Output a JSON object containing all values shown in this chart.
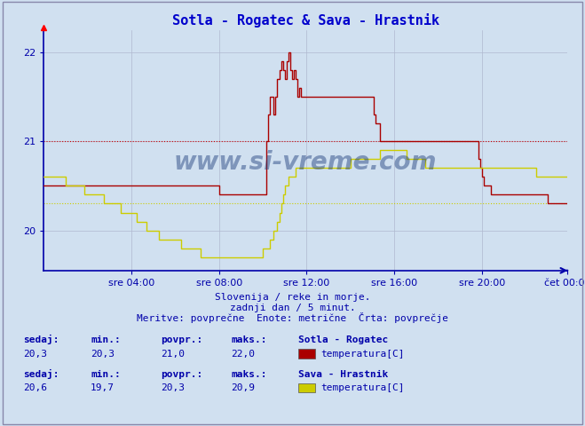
{
  "title": "Sotla - Rogatec & Sava - Hrastnik",
  "title_color": "#0000cc",
  "bg_color": "#d0e0f0",
  "plot_bg_color": "#d0e0f0",
  "grid_color": "#b0b8d0",
  "axis_color": "#0000aa",
  "xlabel_ticks": [
    "sre 04:00",
    "sre 08:00",
    "sre 12:00",
    "sre 16:00",
    "sre 20:00",
    "čet 00:00"
  ],
  "ylabel_ticks": [
    20,
    21,
    22
  ],
  "ylim": [
    19.55,
    22.25
  ],
  "xlim": [
    0,
    287
  ],
  "subtitle1": "Slovenija / reke in morje.",
  "subtitle2": "zadnji dan / 5 minut.",
  "subtitle3": "Meritve: povprečne  Enote: metrične  Črta: povprečje",
  "watermark": "www.si-vreme.com",
  "series1_color": "#aa0000",
  "series2_color": "#cccc00",
  "avg1_color": "#cc0000",
  "avg2_color": "#cccc00",
  "avg1": 21.0,
  "avg2": 20.3,
  "label1_station": "Sotla - Rogatec",
  "label2_station": "Sava - Hrastnik",
  "label1_param": "temperatura[C]",
  "label2_param": "temperatura[C]",
  "stats1": {
    "sedaj": "20,3",
    "min": "20,3",
    "povpr": "21,0",
    "maks": "22,0"
  },
  "stats2": {
    "sedaj": "20,6",
    "min": "19,7",
    "povpr": "20,3",
    "maks": "20,9"
  },
  "series1": [
    20.5,
    20.5,
    20.5,
    20.5,
    20.5,
    20.5,
    20.5,
    20.5,
    20.5,
    20.5,
    20.5,
    20.5,
    20.5,
    20.5,
    20.5,
    20.5,
    20.5,
    20.5,
    20.5,
    20.5,
    20.5,
    20.5,
    20.5,
    20.5,
    20.5,
    20.5,
    20.5,
    20.5,
    20.5,
    20.5,
    20.5,
    20.5,
    20.5,
    20.5,
    20.5,
    20.5,
    20.5,
    20.5,
    20.5,
    20.5,
    20.5,
    20.5,
    20.5,
    20.5,
    20.5,
    20.5,
    20.5,
    20.5,
    20.5,
    20.5,
    20.5,
    20.5,
    20.5,
    20.5,
    20.5,
    20.5,
    20.5,
    20.5,
    20.5,
    20.5,
    20.5,
    20.5,
    20.5,
    20.5,
    20.5,
    20.5,
    20.5,
    20.5,
    20.5,
    20.5,
    20.5,
    20.5,
    20.5,
    20.5,
    20.5,
    20.5,
    20.5,
    20.5,
    20.5,
    20.5,
    20.5,
    20.5,
    20.5,
    20.5,
    20.5,
    20.5,
    20.5,
    20.5,
    20.5,
    20.5,
    20.5,
    20.5,
    20.5,
    20.5,
    20.5,
    20.5,
    20.4,
    20.4,
    20.4,
    20.4,
    20.4,
    20.4,
    20.4,
    20.4,
    20.4,
    20.4,
    20.4,
    20.4,
    20.4,
    20.4,
    20.4,
    20.4,
    20.4,
    20.4,
    20.4,
    20.4,
    20.4,
    20.4,
    20.4,
    20.4,
    20.4,
    20.4,
    21.0,
    21.3,
    21.5,
    21.5,
    21.3,
    21.5,
    21.7,
    21.8,
    21.9,
    21.8,
    21.7,
    21.9,
    22.0,
    21.8,
    21.7,
    21.8,
    21.7,
    21.5,
    21.6,
    21.5,
    21.5,
    21.5,
    21.5,
    21.5,
    21.5,
    21.5,
    21.5,
    21.5,
    21.5,
    21.5,
    21.5,
    21.5,
    21.5,
    21.5,
    21.5,
    21.5,
    21.5,
    21.5,
    21.5,
    21.5,
    21.5,
    21.5,
    21.5,
    21.5,
    21.5,
    21.5,
    21.5,
    21.5,
    21.5,
    21.5,
    21.5,
    21.5,
    21.5,
    21.5,
    21.5,
    21.5,
    21.5,
    21.5,
    21.5,
    21.3,
    21.2,
    21.2,
    21.0,
    21.0,
    21.0,
    21.0,
    21.0,
    21.0,
    21.0,
    21.0,
    21.0,
    21.0,
    21.0,
    21.0,
    21.0,
    21.0,
    21.0,
    21.0,
    21.0,
    21.0,
    21.0,
    21.0,
    21.0,
    21.0,
    21.0,
    21.0,
    21.0,
    21.0,
    21.0,
    21.0,
    21.0,
    21.0,
    21.0,
    21.0,
    21.0,
    21.0,
    21.0,
    21.0,
    21.0,
    21.0,
    21.0,
    21.0,
    21.0,
    21.0,
    21.0,
    21.0,
    21.0,
    21.0,
    21.0,
    21.0,
    21.0,
    21.0,
    21.0,
    21.0,
    21.0,
    21.0,
    20.8,
    20.7,
    20.6,
    20.5,
    20.5,
    20.5,
    20.5,
    20.4,
    20.4,
    20.4,
    20.4,
    20.4,
    20.4,
    20.4,
    20.4,
    20.4,
    20.4,
    20.4,
    20.4,
    20.4,
    20.4,
    20.4,
    20.4,
    20.4,
    20.4,
    20.4,
    20.4,
    20.4,
    20.4,
    20.4,
    20.4,
    20.4,
    20.4,
    20.4,
    20.4,
    20.4,
    20.4,
    20.4,
    20.3,
    20.3,
    20.3,
    20.3,
    20.3,
    20.3,
    20.3,
    20.3,
    20.3,
    20.3,
    20.3,
    20.3
  ],
  "series2": [
    20.6,
    20.6,
    20.6,
    20.6,
    20.6,
    20.6,
    20.6,
    20.6,
    20.6,
    20.6,
    20.6,
    20.6,
    20.5,
    20.5,
    20.5,
    20.5,
    20.5,
    20.5,
    20.5,
    20.5,
    20.5,
    20.5,
    20.4,
    20.4,
    20.4,
    20.4,
    20.4,
    20.4,
    20.4,
    20.4,
    20.4,
    20.4,
    20.4,
    20.3,
    20.3,
    20.3,
    20.3,
    20.3,
    20.3,
    20.3,
    20.3,
    20.3,
    20.2,
    20.2,
    20.2,
    20.2,
    20.2,
    20.2,
    20.2,
    20.2,
    20.2,
    20.1,
    20.1,
    20.1,
    20.1,
    20.1,
    20.0,
    20.0,
    20.0,
    20.0,
    20.0,
    20.0,
    20.0,
    19.9,
    19.9,
    19.9,
    19.9,
    19.9,
    19.9,
    19.9,
    19.9,
    19.9,
    19.9,
    19.9,
    19.9,
    19.8,
    19.8,
    19.8,
    19.8,
    19.8,
    19.8,
    19.8,
    19.8,
    19.8,
    19.8,
    19.8,
    19.7,
    19.7,
    19.7,
    19.7,
    19.7,
    19.7,
    19.7,
    19.7,
    19.7,
    19.7,
    19.7,
    19.7,
    19.7,
    19.7,
    19.7,
    19.7,
    19.7,
    19.7,
    19.7,
    19.7,
    19.7,
    19.7,
    19.7,
    19.7,
    19.7,
    19.7,
    19.7,
    19.7,
    19.7,
    19.7,
    19.7,
    19.7,
    19.7,
    19.7,
    19.8,
    19.8,
    19.8,
    19.8,
    19.9,
    19.9,
    20.0,
    20.0,
    20.1,
    20.2,
    20.3,
    20.4,
    20.5,
    20.5,
    20.6,
    20.6,
    20.6,
    20.6,
    20.7,
    20.7,
    20.7,
    20.7,
    20.7,
    20.7,
    20.7,
    20.7,
    20.7,
    20.7,
    20.7,
    20.7,
    20.7,
    20.7,
    20.7,
    20.7,
    20.7,
    20.7,
    20.7,
    20.7,
    20.7,
    20.7,
    20.7,
    20.7,
    20.7,
    20.7,
    20.7,
    20.7,
    20.7,
    20.7,
    20.8,
    20.8,
    20.8,
    20.8,
    20.8,
    20.8,
    20.8,
    20.8,
    20.8,
    20.8,
    20.8,
    20.8,
    20.8,
    20.8,
    20.8,
    20.8,
    20.9,
    20.9,
    20.9,
    20.9,
    20.9,
    20.9,
    20.9,
    20.9,
    20.9,
    20.9,
    20.9,
    20.9,
    20.9,
    20.9,
    20.9,
    20.8,
    20.8,
    20.8,
    20.8,
    20.8,
    20.8,
    20.8,
    20.8,
    20.8,
    20.8,
    20.7,
    20.7,
    20.7,
    20.7,
    20.7,
    20.7,
    20.7,
    20.7,
    20.7,
    20.7,
    20.7,
    20.7,
    20.7,
    20.7,
    20.7,
    20.7,
    20.7,
    20.7,
    20.7,
    20.7,
    20.7,
    20.7,
    20.7,
    20.7,
    20.7,
    20.7,
    20.7,
    20.7,
    20.7,
    20.7,
    20.7,
    20.7,
    20.7,
    20.7,
    20.7,
    20.7,
    20.7,
    20.7,
    20.7,
    20.7,
    20.7,
    20.7,
    20.7,
    20.7,
    20.7,
    20.7,
    20.7,
    20.7,
    20.7,
    20.7,
    20.7,
    20.7,
    20.7,
    20.7,
    20.7,
    20.7,
    20.7,
    20.7,
    20.7,
    20.7,
    20.7,
    20.6,
    20.6,
    20.6,
    20.6,
    20.6,
    20.6,
    20.6,
    20.6,
    20.6,
    20.6,
    20.6,
    20.6,
    20.6,
    20.6,
    20.6,
    20.6,
    20.6,
    20.6
  ]
}
